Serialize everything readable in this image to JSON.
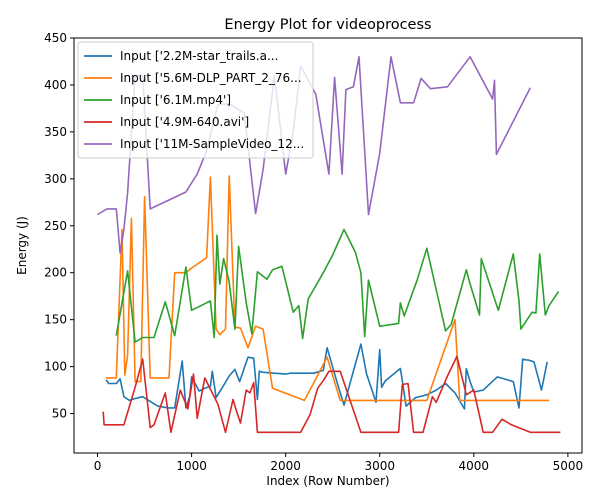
{
  "chart_data": {
    "type": "line",
    "title": "Energy Plot for videoprocess",
    "xlabel": "Index (Row Number)",
    "ylabel": "Energy (J)",
    "xlim": [
      -250,
      5150
    ],
    "ylim": [
      8,
      450
    ],
    "xticks": [
      0,
      1000,
      2000,
      3000,
      4000,
      5000
    ],
    "yticks": [
      50,
      100,
      150,
      200,
      250,
      300,
      350,
      400,
      450
    ],
    "grid": false,
    "legend_position": "top-left",
    "series": [
      {
        "name": "Input ['2.2M-star_trails.a...",
        "color": "#1f77b4",
        "x": [
          90,
          120,
          200,
          240,
          280,
          340,
          400,
          480,
          560,
          640,
          750,
          820,
          900,
          940,
          980,
          1000,
          1080,
          1140,
          1200,
          1220,
          1260,
          1340,
          1400,
          1460,
          1510,
          1600,
          1660,
          1700,
          1720,
          1760,
          2000,
          2050,
          2300,
          2400,
          2440,
          2550,
          2620,
          2800,
          2860,
          2960,
          3000,
          3020,
          3060,
          3220,
          3280,
          3380,
          3500,
          3600,
          3700,
          3800,
          3900,
          3920,
          3960,
          4000,
          4100,
          4250,
          4420,
          4480,
          4520,
          4560,
          4580,
          4640,
          4720,
          4780
        ],
        "y": [
          86,
          82,
          82,
          87,
          68,
          64,
          66,
          68,
          63,
          58,
          56,
          56,
          106,
          56,
          68,
          89,
          74,
          77,
          79,
          95,
          67,
          80,
          90,
          97,
          84,
          110,
          109,
          65,
          95,
          94,
          92,
          93,
          93,
          96,
          120,
          82,
          59,
          124,
          92,
          62,
          118,
          78,
          85,
          98,
          58,
          67,
          70,
          75,
          82,
          72,
          55,
          98,
          84,
          73,
          75,
          89,
          84,
          56,
          108,
          107,
          107,
          105,
          75,
          105
        ]
      },
      {
        "name": "Input ['5.6M-DLP_PART_2_76...",
        "color": "#ff7f0e",
        "x": [
          90,
          140,
          200,
          260,
          290,
          320,
          360,
          400,
          430,
          460,
          500,
          560,
          640,
          700,
          760,
          820,
          860,
          940,
          1000,
          1160,
          1200,
          1260,
          1300,
          1360,
          1400,
          1460,
          1520,
          1600,
          1680,
          1760,
          1860,
          2200,
          2440,
          2580,
          2800,
          3000,
          3200,
          3500,
          3800,
          3850,
          4000,
          4300,
          4600,
          4800
        ],
        "y": [
          88,
          88,
          88,
          246,
          91,
          112,
          258,
          84,
          84,
          84,
          281,
          88,
          88,
          88,
          88,
          200,
          200,
          200,
          205,
          216,
          302,
          140,
          134,
          140,
          303,
          142,
          141,
          120,
          143,
          140,
          77,
          64,
          110,
          64,
          64,
          64,
          64,
          64,
          150,
          64,
          64,
          64,
          64,
          64
        ]
      },
      {
        "name": "Input ['6.1M.mp4']",
        "color": "#2ca02c",
        "x": [
          200,
          320,
          400,
          480,
          540,
          600,
          720,
          820,
          940,
          1000,
          1120,
          1200,
          1240,
          1270,
          1300,
          1340,
          1400,
          1460,
          1500,
          1580,
          1640,
          1700,
          1800,
          1860,
          1960,
          2080,
          2140,
          2180,
          2240,
          2400,
          2500,
          2620,
          2740,
          2800,
          2840,
          2880,
          3000,
          3200,
          3220,
          3260,
          3400,
          3500,
          3700,
          3760,
          3920,
          3960,
          4060,
          4080,
          4260,
          4420,
          4480,
          4500,
          4560,
          4620,
          4660,
          4700,
          4760,
          4800,
          4900
        ],
        "y": [
          133,
          202,
          126,
          131,
          131,
          131,
          169,
          133,
          206,
          160,
          166,
          170,
          131,
          240,
          188,
          215,
          190,
          140,
          228,
          168,
          135,
          201,
          193,
          203,
          207,
          158,
          165,
          130,
          172,
          200,
          219,
          246,
          222,
          200,
          132,
          192,
          143,
          146,
          168,
          154,
          193,
          226,
          138,
          145,
          203,
          188,
          155,
          215,
          160,
          220,
          170,
          140,
          149,
          158,
          157,
          220,
          155,
          165,
          180
        ]
      },
      {
        "name": "Input ['4.9M-640.avi']",
        "color": "#d62728",
        "x": [
          60,
          70,
          140,
          200,
          280,
          400,
          480,
          560,
          600,
          720,
          780,
          880,
          960,
          1020,
          1060,
          1140,
          1280,
          1360,
          1440,
          1480,
          1520,
          1580,
          1620,
          1660,
          1700,
          1800,
          2160,
          2260,
          2340,
          2400,
          2460,
          2520,
          2580,
          2800,
          3000,
          3200,
          3240,
          3300,
          3360,
          3420,
          3460,
          3560,
          3600,
          3720,
          3820,
          3920,
          4000,
          4100,
          4200,
          4300,
          4400,
          4600,
          4920
        ],
        "y": [
          52,
          38,
          38,
          38,
          38,
          78,
          108,
          35,
          38,
          72,
          30,
          75,
          55,
          92,
          45,
          88,
          60,
          30,
          65,
          52,
          40,
          75,
          72,
          83,
          30,
          30,
          30,
          49,
          77,
          85,
          95,
          95,
          95,
          30,
          30,
          30,
          81,
          82,
          30,
          30,
          30,
          68,
          62,
          90,
          111,
          70,
          75,
          30,
          30,
          44,
          38,
          30,
          30
        ]
      },
      {
        "name": "Input ['11M-SampleVideo_12...",
        "color": "#9467bd",
        "x": [
          0,
          100,
          200,
          240,
          280,
          320,
          400,
          480,
          560,
          940,
          1060,
          1160,
          1280,
          1400,
          1560,
          1680,
          1760,
          1880,
          2000,
          2080,
          2160,
          2320,
          2460,
          2520,
          2600,
          2640,
          2720,
          2780,
          2880,
          3000,
          3120,
          3220,
          3360,
          3440,
          3540,
          3720,
          3960,
          4200,
          4220,
          4240,
          4600
        ],
        "y": [
          262,
          268,
          268,
          221,
          246,
          285,
          410,
          410,
          268,
          286,
          305,
          330,
          379,
          380,
          370,
          263,
          310,
          410,
          305,
          350,
          420,
          390,
          305,
          408,
          305,
          395,
          398,
          430,
          262,
          327,
          430,
          381,
          381,
          407,
          396,
          398,
          430,
          385,
          405,
          326,
          397
        ]
      }
    ]
  }
}
